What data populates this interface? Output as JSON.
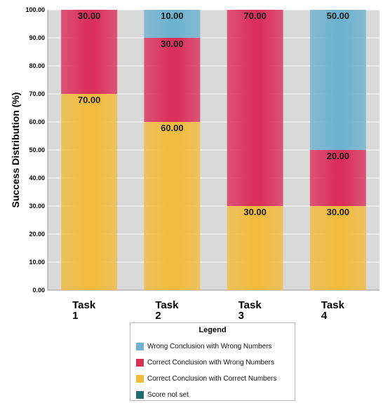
{
  "chart_data": {
    "type": "bar",
    "stacked": true,
    "categories": [
      "Task 1",
      "Task 2",
      "Task 3",
      "Task 4"
    ],
    "category_lines": [
      [
        "Task",
        "1"
      ],
      [
        "Task",
        "2"
      ],
      [
        "Task",
        "3"
      ],
      [
        "Task",
        "4"
      ]
    ],
    "ylabel": "Success Distribution (%)",
    "xlabel": "",
    "ylim": [
      0,
      100
    ],
    "yticks": [
      "0.00",
      "10.00",
      "20.00",
      "30.00",
      "40.00",
      "50.00",
      "60.00",
      "70.00",
      "80.00",
      "90.00",
      "100.00"
    ],
    "grid": true,
    "legend_position": "bottom",
    "series": [
      {
        "name": "Correct Conclusion with Correct Numbers",
        "color": "#F2BB3E",
        "values": [
          70,
          60,
          30,
          30
        ],
        "labels": [
          "70.00",
          "60.00",
          "30.00",
          "30.00"
        ]
      },
      {
        "name": "Correct Conclusion with Wrong  Numbers",
        "color": "#DB2F5B",
        "values": [
          30,
          30,
          70,
          20
        ],
        "labels": [
          "30.00",
          "30.00",
          "70.00",
          "20.00"
        ]
      },
      {
        "name": "Wrong Conclusion with Wrong Numbers",
        "color": "#6EB2D0",
        "values": [
          0,
          10,
          0,
          50
        ],
        "labels": [
          "",
          "10.00",
          "",
          "50.00"
        ]
      },
      {
        "name": "Score not set",
        "color": "#1F6B6E",
        "values": [
          0,
          0,
          0,
          0
        ],
        "labels": [
          "",
          "",
          "",
          ""
        ]
      }
    ]
  },
  "legend": {
    "title": "Legend",
    "items": [
      {
        "label": "Wrong Conclusion with Wrong Numbers",
        "color": "#6EB2D0"
      },
      {
        "label": "Correct Conclusion with Wrong  Numbers",
        "color": "#DB2F5B"
      },
      {
        "label": "Correct Conclusion with Correct Numbers",
        "color": "#F2BB3E"
      },
      {
        "label": "Score not set",
        "color": "#1F6B6E"
      }
    ]
  }
}
